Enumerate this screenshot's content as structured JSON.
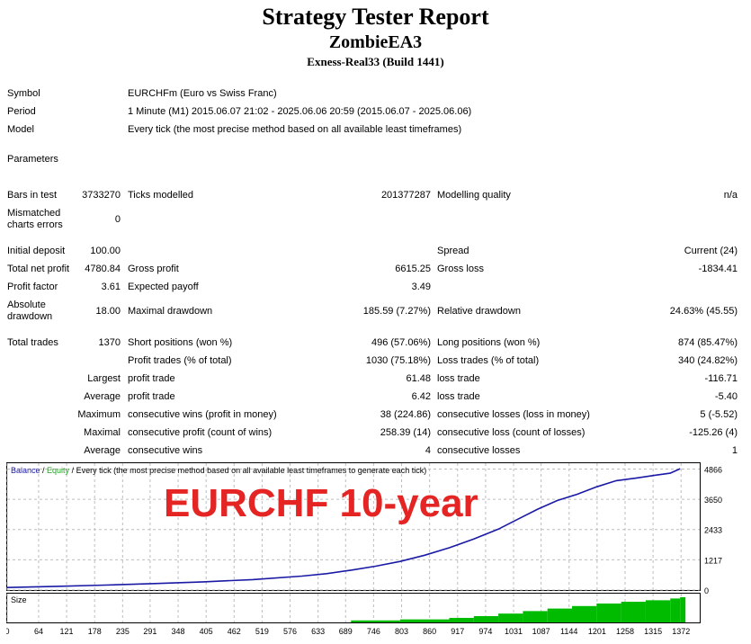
{
  "header": {
    "title": "Strategy Tester Report",
    "ea_name": "ZombieEA3",
    "server": "Exness-Real33 (Build 1441)"
  },
  "info": {
    "symbol_label": "Symbol",
    "symbol_value": "EURCHFm (Euro vs Swiss Franc)",
    "period_label": "Period",
    "period_value": "1 Minute (M1) 2015.06.07 21:02 - 2025.06.06 20:59 (2015.06.07 - 2025.06.06)",
    "model_label": "Model",
    "model_value": "Every tick (the most precise method based on all available least timeframes)",
    "parameters_label": "Parameters"
  },
  "stats": {
    "bars_label": "Bars in test",
    "bars_value": "3733270",
    "ticks_label": "Ticks modelled",
    "ticks_value": "201377287",
    "quality_label": "Modelling quality",
    "quality_value": "n/a",
    "mismatch_label_1": "Mismatched",
    "mismatch_label_2": "charts errors",
    "mismatch_value": "0",
    "deposit_label": "Initial deposit",
    "deposit_value": "100.00",
    "spread_label": "Spread",
    "spread_value": "Current (24)",
    "net_label": "Total net profit",
    "net_value": "4780.84",
    "gross_profit_label": "Gross profit",
    "gross_profit_value": "6615.25",
    "gross_loss_label": "Gross loss",
    "gross_loss_value": "-1834.41",
    "pf_label": "Profit factor",
    "pf_value": "3.61",
    "ep_label": "Expected payoff",
    "ep_value": "3.49",
    "absdd_label_1": "Absolute",
    "absdd_label_2": "drawdown",
    "absdd_value": "18.00",
    "maxdd_label": "Maximal drawdown",
    "maxdd_value": "185.59 (7.27%)",
    "reldd_label": "Relative drawdown",
    "reldd_value": "24.63% (45.55)",
    "trades_label": "Total trades",
    "trades_value": "1370",
    "short_label": "Short positions (won %)",
    "short_value": "496 (57.06%)",
    "long_label": "Long positions (won %)",
    "long_value": "874 (85.47%)",
    "pt_label": "Profit trades (% of total)",
    "pt_value": "1030 (75.18%)",
    "lt_label": "Loss trades (% of total)",
    "lt_value": "340 (24.82%)",
    "largest_label": "Largest",
    "largest_profit_label": "profit trade",
    "largest_profit_value": "61.48",
    "largest_loss_label": "loss trade",
    "largest_loss_value": "-116.71",
    "average_label": "Average",
    "average_profit_label": "profit trade",
    "average_profit_value": "6.42",
    "average_loss_label": "loss trade",
    "average_loss_value": "-5.40",
    "maximum_label": "Maximum",
    "max_wins_label": "consecutive wins (profit in money)",
    "max_wins_value": "38 (224.86)",
    "max_losses_label": "consecutive losses (loss in money)",
    "max_losses_value": "5 (-5.52)",
    "maximal_label": "Maximal",
    "maximal_profit_label": "consecutive profit (count of wins)",
    "maximal_profit_value": "258.39 (14)",
    "maximal_loss_label": "consecutive loss (count of losses)",
    "maximal_loss_value": "-125.26 (4)",
    "average2_label": "Average",
    "avg_wins_label": "consecutive wins",
    "avg_wins_value": "4",
    "avg_losses_label": "consecutive losses",
    "avg_losses_value": "1"
  },
  "chart_data": {
    "type": "line",
    "legend_balance": "Balance",
    "legend_sep": " / ",
    "legend_equity": "Equity",
    "legend_rest": " / Every tick (the most precise method based on all available least timeframes to generate each tick)",
    "overlay_text": "EURCHF 10-year",
    "size_label": "Size",
    "colors": {
      "balance": "#1a1aa6",
      "equity": "#1aa61a",
      "size": "#00bb00",
      "overlay": "#e52424"
    },
    "y_ticks": [
      "4866",
      "3650",
      "2433",
      "1217",
      "0"
    ],
    "y_tick_values": [
      4866,
      3650,
      2433,
      1217,
      0
    ],
    "ylim": [
      0,
      5100
    ],
    "x_ticks": [
      "0",
      "64",
      "121",
      "178",
      "235",
      "291",
      "348",
      "405",
      "462",
      "519",
      "576",
      "633",
      "689",
      "746",
      "803",
      "860",
      "917",
      "974",
      "1031",
      "1087",
      "1144",
      "1201",
      "1258",
      "1315",
      "1372"
    ],
    "xlim": [
      0,
      1410
    ],
    "series": [
      {
        "name": "Balance",
        "x": [
          0,
          100,
          200,
          300,
          400,
          500,
          600,
          650,
          700,
          750,
          800,
          850,
          900,
          950,
          1000,
          1040,
          1080,
          1120,
          1160,
          1200,
          1240,
          1280,
          1320,
          1350,
          1370
        ],
        "values": [
          100,
          150,
          200,
          260,
          330,
          420,
          560,
          660,
          800,
          960,
          1150,
          1400,
          1700,
          2050,
          2450,
          2850,
          3250,
          3600,
          3850,
          4150,
          4400,
          4500,
          4620,
          4700,
          4880
        ]
      }
    ],
    "size_bars": {
      "x": [
        700,
        800,
        900,
        950,
        1000,
        1050,
        1100,
        1150,
        1200,
        1250,
        1300,
        1350,
        1370
      ],
      "values": [
        0.08,
        0.12,
        0.18,
        0.25,
        0.35,
        0.45,
        0.55,
        0.65,
        0.75,
        0.82,
        0.88,
        0.95,
        1.0
      ]
    },
    "grid": true
  }
}
